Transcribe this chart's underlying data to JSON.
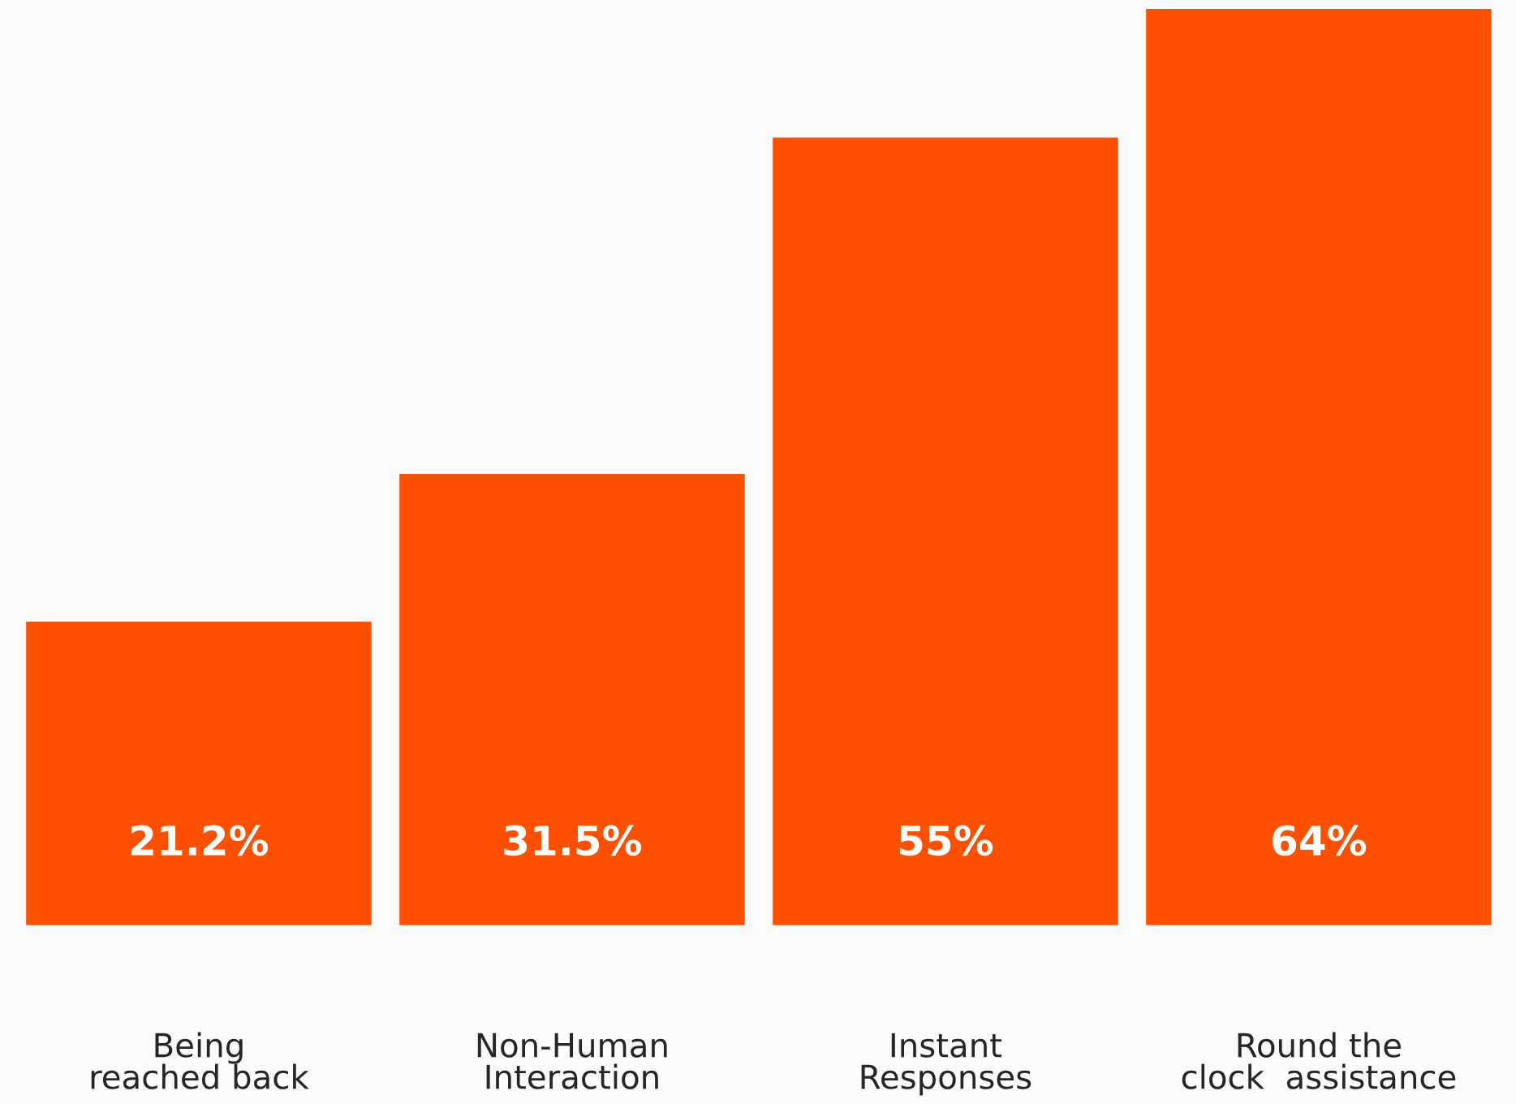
{
  "chart_data": {
    "type": "bar",
    "categories": [
      "Being\nreached back",
      "Non-Human\nInteraction",
      "Instant\nResponses",
      "Round the\nclock  assistance"
    ],
    "values": [
      21.2,
      31.5,
      55,
      64
    ],
    "value_labels": [
      "21.2%",
      "31.5%",
      "55%",
      "64%"
    ],
    "color": "#ff5000",
    "grid": false
  }
}
